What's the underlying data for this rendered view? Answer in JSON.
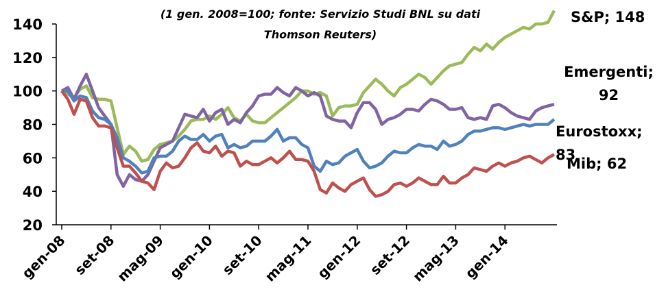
{
  "chart_data": {
    "type": "line",
    "subtitle": "(1 gen. 2008=100; fonte: Servizio Studi BNL su dati Thomson Reuters)",
    "categories": [
      "gen-08",
      null,
      null,
      null,
      null,
      null,
      null,
      null,
      "set-08",
      null,
      null,
      null,
      null,
      null,
      null,
      null,
      "mag-09",
      null,
      null,
      null,
      null,
      null,
      null,
      null,
      "gen-10",
      null,
      null,
      null,
      null,
      null,
      null,
      null,
      "set-10",
      null,
      null,
      null,
      null,
      null,
      null,
      null,
      "mag-11",
      null,
      null,
      null,
      null,
      null,
      null,
      null,
      "gen-12",
      null,
      null,
      null,
      null,
      null,
      null,
      null,
      "set-12",
      null,
      null,
      null,
      null,
      null,
      null,
      null,
      "mag-13",
      null,
      null,
      null,
      null,
      null,
      null,
      null,
      "gen-14",
      null,
      null,
      null,
      null,
      null,
      null,
      null,
      null
    ],
    "series": [
      {
        "name": "S&P; 148",
        "color": "#9bbb59",
        "values": [
          100,
          98,
          96,
          101,
          103,
          96,
          95,
          95,
          94,
          78,
          62,
          67,
          64,
          58,
          59,
          65,
          68,
          69,
          70,
          73,
          77,
          82,
          83,
          83,
          85,
          83,
          86,
          90,
          84,
          82,
          86,
          82,
          81,
          81,
          84,
          87,
          90,
          93,
          96,
          100,
          100,
          98,
          99,
          97,
          85,
          90,
          91,
          91,
          92,
          99,
          103,
          107,
          104,
          100,
          97,
          102,
          104,
          107,
          110,
          108,
          104,
          108,
          112,
          115,
          116,
          117,
          122,
          126,
          124,
          128,
          125,
          129,
          132,
          134,
          136,
          138,
          137,
          140,
          140,
          141,
          148
        ]
      },
      {
        "name": "Emergenti; 92",
        "color": "#8064a2",
        "values": [
          100,
          102,
          95,
          103,
          110,
          100,
          90,
          85,
          80,
          50,
          43,
          50,
          47,
          46,
          50,
          58,
          66,
          68,
          70,
          78,
          86,
          85,
          84,
          89,
          82,
          87,
          89,
          80,
          83,
          81,
          87,
          91,
          97,
          98,
          98,
          102,
          99,
          97,
          102,
          100,
          97,
          99,
          97,
          85,
          83,
          82,
          82,
          78,
          87,
          93,
          93,
          89,
          80,
          83,
          84,
          86,
          89,
          89,
          88,
          92,
          95,
          94,
          92,
          89,
          89,
          90,
          84,
          83,
          84,
          83,
          91,
          92,
          90,
          87,
          85,
          84,
          83,
          88,
          90,
          91,
          92
        ]
      },
      {
        "name": "Eurostoxx; 83",
        "color": "#4f81bd",
        "values": [
          100,
          100,
          94,
          97,
          96,
          88,
          84,
          83,
          80,
          72,
          60,
          58,
          55,
          51,
          52,
          60,
          61,
          61,
          64,
          70,
          73,
          71,
          71,
          74,
          70,
          73,
          74,
          66,
          68,
          66,
          67,
          70,
          70,
          70,
          73,
          77,
          70,
          72,
          72,
          68,
          66,
          55,
          52,
          58,
          56,
          57,
          61,
          63,
          65,
          58,
          54,
          55,
          57,
          61,
          64,
          63,
          63,
          66,
          68,
          67,
          67,
          65,
          70,
          67,
          68,
          70,
          74,
          76,
          76,
          77,
          78,
          78,
          77,
          78,
          79,
          80,
          79,
          80,
          80,
          80,
          83
        ]
      },
      {
        "name": "Mib; 62",
        "color": "#c0504d",
        "values": [
          100,
          95,
          86,
          95,
          94,
          84,
          79,
          79,
          78,
          66,
          55,
          55,
          51,
          46,
          45,
          41,
          52,
          57,
          54,
          55,
          60,
          66,
          69,
          64,
          63,
          67,
          61,
          64,
          63,
          55,
          58,
          56,
          56,
          58,
          60,
          57,
          60,
          64,
          59,
          59,
          58,
          52,
          41,
          39,
          45,
          42,
          40,
          44,
          46,
          48,
          41,
          37,
          38,
          40,
          44,
          45,
          43,
          45,
          48,
          46,
          44,
          44,
          49,
          45,
          45,
          48,
          50,
          54,
          53,
          52,
          55,
          57,
          55,
          57,
          58,
          60,
          61,
          59,
          57,
          60,
          62
        ]
      }
    ],
    "ylim": [
      20,
      140
    ],
    "yticks": [
      20,
      40,
      60,
      80,
      100,
      120,
      140
    ]
  }
}
